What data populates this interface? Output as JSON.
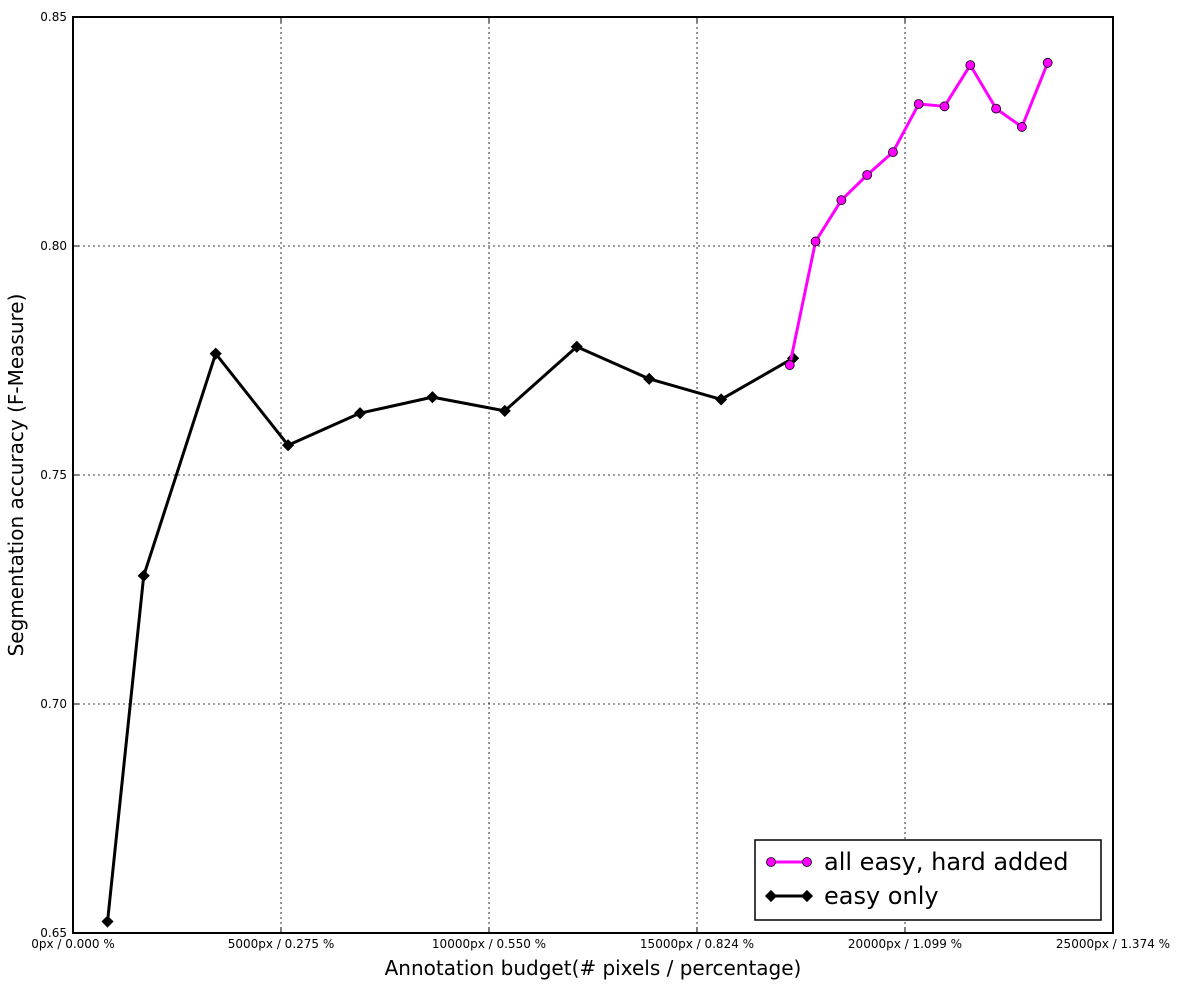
{
  "chart_data": {
    "type": "line",
    "xlabel": "Annotation budget(# pixels / percentage)",
    "ylabel": "Segmentation accuracy (F-Measure)",
    "xlim": [
      0,
      25000
    ],
    "ylim": [
      0.65,
      0.85
    ],
    "grid": true,
    "legend_position": "bottom-right",
    "x_ticks": [
      {
        "value": 0,
        "label": "0px / 0.000 %"
      },
      {
        "value": 5000,
        "label": "5000px / 0.275 %"
      },
      {
        "value": 10000,
        "label": "10000px / 0.550 %"
      },
      {
        "value": 15000,
        "label": "15000px / 0.824 %"
      },
      {
        "value": 20000,
        "label": "20000px / 1.099 %"
      },
      {
        "value": 25000,
        "label": "25000px / 1.374 %"
      }
    ],
    "y_ticks": [
      {
        "value": 0.65,
        "label": "0.65"
      },
      {
        "value": 0.7,
        "label": "0.70"
      },
      {
        "value": 0.75,
        "label": "0.75"
      },
      {
        "value": 0.8,
        "label": "0.80"
      },
      {
        "value": 0.85,
        "label": "0.85"
      }
    ],
    "series": [
      {
        "name": "all easy, hard added",
        "color": "#ff00ff",
        "marker": "circle",
        "x": [
          17230,
          17850,
          18470,
          19090,
          19710,
          20330,
          20950,
          21570,
          22190,
          22810,
          23430
        ],
        "y": [
          0.774,
          0.801,
          0.81,
          0.8155,
          0.8205,
          0.831,
          0.8305,
          0.8395,
          0.83,
          0.826,
          0.84
        ]
      },
      {
        "name": "easy only",
        "color": "#000000",
        "marker": "diamond",
        "x": [
          830,
          1700,
          3430,
          5170,
          6900,
          8640,
          10380,
          12110,
          13850,
          15580,
          17310
        ],
        "y": [
          0.6525,
          0.728,
          0.7765,
          0.7565,
          0.7635,
          0.767,
          0.764,
          0.778,
          0.771,
          0.7665,
          0.7755
        ]
      }
    ]
  }
}
